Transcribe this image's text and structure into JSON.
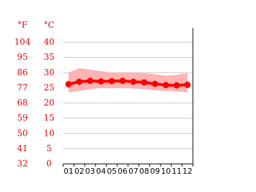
{
  "chart_data": {
    "type": "line",
    "y2_title": "°F",
    "y_title": "°C",
    "categories": [
      "01",
      "02",
      "03",
      "04",
      "05",
      "06",
      "07",
      "08",
      "09",
      "10",
      "11",
      "12"
    ],
    "values": [
      26.2,
      27.0,
      27.3,
      27.1,
      27.2,
      27.3,
      27.0,
      26.8,
      26.3,
      25.9,
      25.8,
      26.0
    ],
    "band_high": [
      30.0,
      31.5,
      31.0,
      30.5,
      30.0,
      30.0,
      30.0,
      29.8,
      29.5,
      29.0,
      29.3,
      29.8
    ],
    "band_low": [
      23.5,
      24.0,
      24.5,
      25.0,
      25.0,
      25.0,
      24.8,
      24.5,
      24.2,
      24.0,
      23.8,
      23.5
    ],
    "color": "#ff0000",
    "band_color": "#ffb3b3",
    "ylim": [
      0,
      40
    ],
    "yticks": [
      0,
      5,
      10,
      15,
      20,
      25,
      30,
      35,
      40
    ],
    "y2lim": [
      32,
      104
    ],
    "y2ticks": [
      32,
      41,
      50,
      59,
      68,
      77,
      86,
      95,
      104
    ],
    "grid": true
  }
}
